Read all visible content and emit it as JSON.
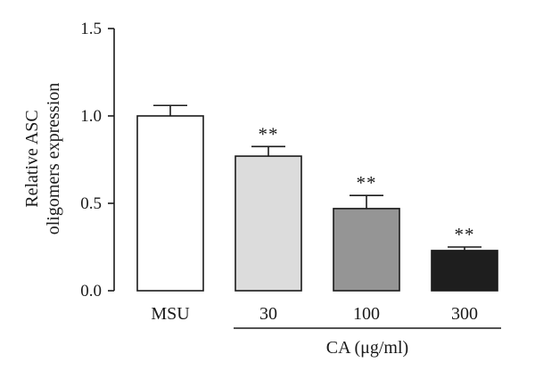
{
  "chart_data": {
    "type": "bar",
    "ylabel_lines": [
      "Relative ASC",
      "oligomers expression"
    ],
    "xlabel": "CA (μg/ml)",
    "ylim": [
      0,
      1.5
    ],
    "yticks": [
      "0.0",
      "0.5",
      "1.0",
      "1.5"
    ],
    "categories": [
      "MSU",
      "30",
      "100",
      "300"
    ],
    "values": [
      1.0,
      0.77,
      0.47,
      0.23
    ],
    "errors": [
      0.06,
      0.055,
      0.075,
      0.02
    ],
    "significance": [
      "",
      "**",
      "**",
      "**"
    ],
    "bar_colors": [
      "#ffffff",
      "#dcdcdc",
      "#959595",
      "#1e1e1e"
    ],
    "grid": false,
    "group_bracket": {
      "label": "CA (μg/ml)",
      "spans_categories": [
        "30",
        "100",
        "300"
      ]
    }
  }
}
